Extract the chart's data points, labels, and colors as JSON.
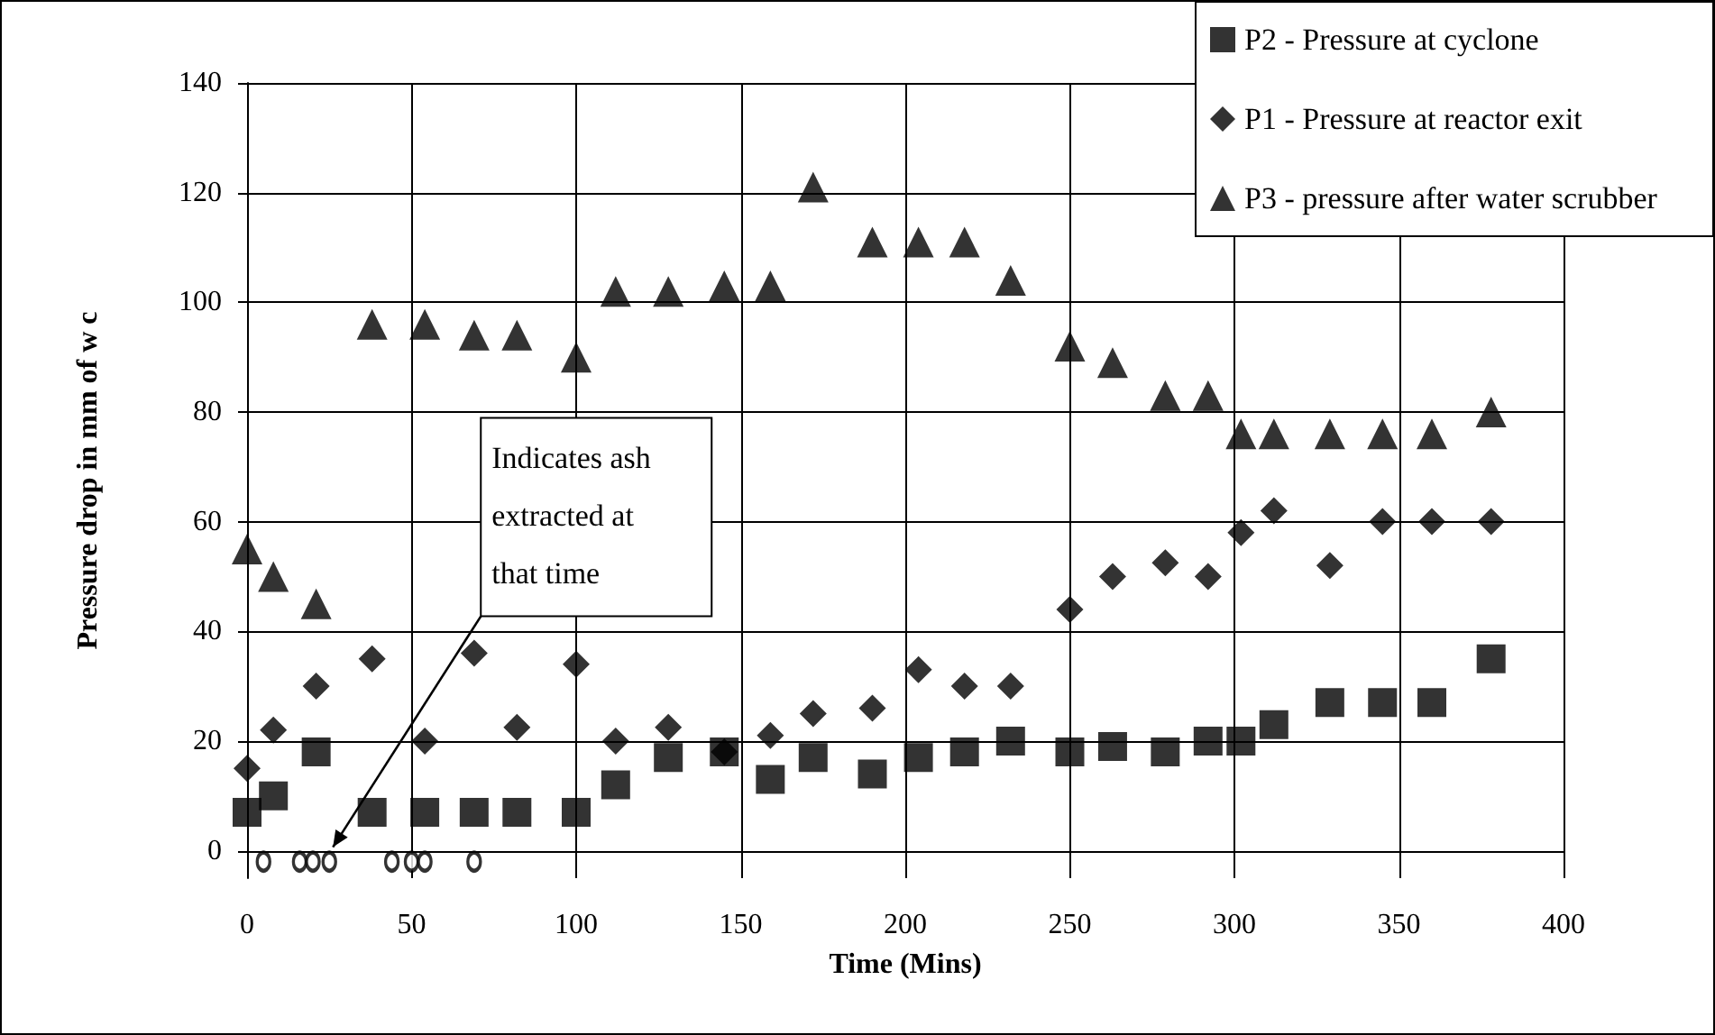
{
  "chart_data": {
    "type": "scatter",
    "xlabel": "Time (Mins)",
    "ylabel": "Pressure drop in mm of w c",
    "xlim": [
      0,
      400
    ],
    "xticks": [
      0,
      50,
      100,
      150,
      200,
      250,
      300,
      350,
      400
    ],
    "ylim": [
      -5,
      140
    ],
    "yticks": [
      0,
      20,
      40,
      60,
      80,
      100,
      120,
      140
    ],
    "grid": true,
    "legend": "top right",
    "annotations": [
      {
        "text": "Indicates ash extracted at that time",
        "x": 25,
        "y": 0
      }
    ],
    "series": [
      {
        "name": "P2 - Pressure at cyclone",
        "color": "#000000",
        "marker": "square",
        "x": [
          0,
          8,
          21,
          38,
          54,
          69,
          82,
          100,
          112,
          128,
          145,
          159,
          172,
          190,
          204,
          218,
          232,
          250,
          263,
          279,
          292,
          302,
          312,
          329,
          345,
          360,
          378
        ],
        "values": [
          7,
          10,
          18,
          7,
          7,
          7,
          7,
          7,
          12,
          17,
          18,
          13,
          17,
          14,
          17,
          18,
          20,
          18,
          19,
          18,
          20,
          20,
          23,
          27,
          27,
          27,
          35
        ]
      },
      {
        "name": "P1 - Pressure at reactor exit",
        "color": "#000000",
        "marker": "diamond",
        "x": [
          0,
          8,
          21,
          38,
          54,
          69,
          82,
          100,
          112,
          128,
          145,
          159,
          172,
          190,
          204,
          218,
          232,
          250,
          263,
          279,
          292,
          302,
          312,
          329,
          345,
          360,
          378
        ],
        "values": [
          15,
          22,
          30,
          35,
          20,
          36,
          22.5,
          34,
          20,
          22.5,
          18,
          21,
          25,
          26,
          33,
          30,
          30,
          44,
          50,
          52.5,
          50,
          58,
          62,
          52,
          60,
          60,
          60
        ]
      },
      {
        "name": "P3 - pressure after water scrubber",
        "color": "#000000",
        "marker": "triangle",
        "x": [
          0,
          8,
          21,
          38,
          54,
          69,
          82,
          100,
          112,
          128,
          145,
          159,
          172,
          190,
          204,
          218,
          232,
          250,
          263,
          279,
          292,
          302,
          312,
          329,
          345,
          360,
          378
        ],
        "values": [
          55,
          50,
          45,
          96,
          96,
          94,
          94,
          90,
          102,
          102,
          103,
          103,
          121,
          111,
          111,
          111,
          104,
          92,
          89,
          83,
          83,
          76,
          76,
          76,
          76,
          76,
          80
        ]
      },
      {
        "color": "#000000",
        "marker": "circle",
        "x": [
          5,
          16,
          20,
          25,
          44,
          50,
          54,
          69
        ],
        "values": [
          -2,
          -2,
          -2,
          -2,
          -2,
          -2,
          -2,
          -2
        ]
      }
    ]
  }
}
